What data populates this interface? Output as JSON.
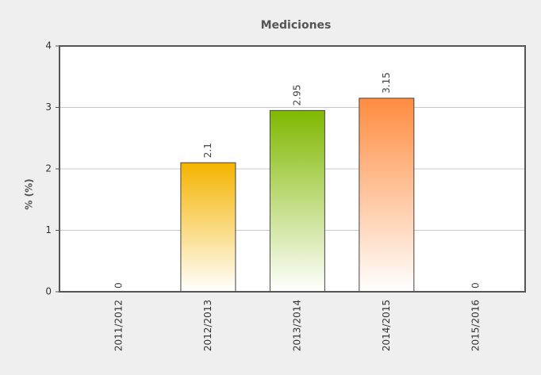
{
  "chart_data": {
    "type": "bar",
    "title": "Mediciones",
    "y_label": "% (%)",
    "categories": [
      "2011/2012",
      "2012/2013",
      "2013/2014",
      "2014/2015",
      "2015/2016"
    ],
    "values": [
      0,
      2.1,
      2.95,
      3.15,
      0
    ],
    "colors": [
      null,
      "#f5b400",
      "#80b800",
      "#ff8c40",
      null
    ],
    "ylim": [
      0,
      4
    ],
    "yticks": [
      0,
      1,
      2,
      3,
      4
    ],
    "grid": true
  }
}
